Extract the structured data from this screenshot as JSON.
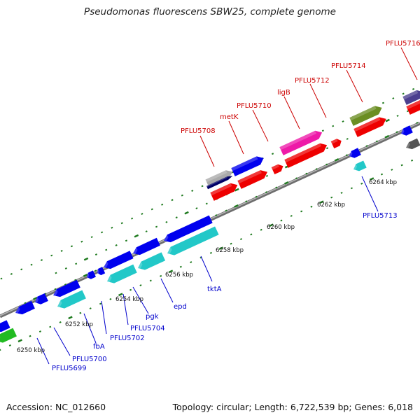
{
  "title": "Pseudomonas fluorescens SBW25, complete genome",
  "footer": {
    "accession": "Accession: NC_012660",
    "summary": "Topology: circular; Length: 6,722,539 bp; Genes: 6,018"
  },
  "colors": {
    "backbone": "#8c8c8c",
    "tick": "#1e7a1e",
    "forward_label": "#cc0000",
    "reverse_label": "#0000cc",
    "gene_blue": "#0000ee",
    "gene_red": "#ee0000",
    "gene_cyan": "#22c8c8",
    "gene_magenta": "#ee1aa8",
    "gene_olive": "#6b8e23",
    "gene_navy": "#000066",
    "gene_gray": "#aaaaaa",
    "gene_purple": "#4b3f8f",
    "gene_green": "#22bb22",
    "gene_darkgray": "#555555"
  },
  "ticks": {
    "labels": [
      "6250 kbp",
      "6252 kbp",
      "6254 kbp",
      "6256 kbp",
      "6258 kbp",
      "6260 kbp",
      "6262 kbp",
      "6264 kbp"
    ]
  },
  "genes": {
    "forward": [
      "PFLU5708",
      "metK",
      "PFLU5710",
      "ligB",
      "PFLU5712",
      "PFLU5714",
      "PFLU5716"
    ],
    "reverse": [
      "PFLU5699",
      "PFLU5700",
      "fbA",
      "PFLU5702",
      "PFLU5704",
      "pgk",
      "epd",
      "tktA",
      "PFLU5713"
    ]
  }
}
